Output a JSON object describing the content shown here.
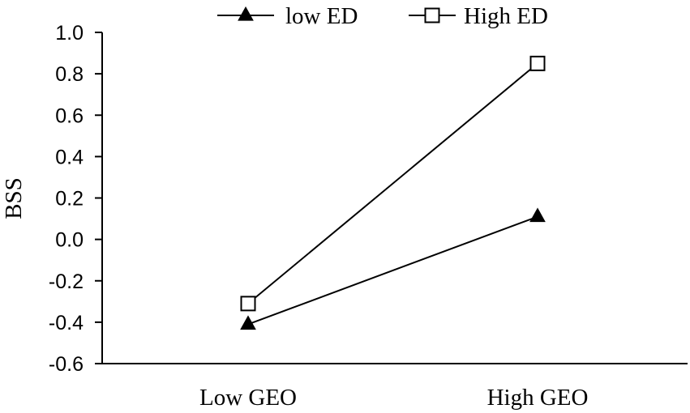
{
  "chart_data": {
    "type": "line",
    "categories": [
      "Low GEO",
      "High GEO"
    ],
    "series": [
      {
        "name": "low ED",
        "marker": "filled-triangle",
        "values": [
          -0.41,
          0.11
        ]
      },
      {
        "name": "High ED",
        "marker": "open-square",
        "values": [
          -0.31,
          0.85
        ]
      }
    ],
    "title": "",
    "xlabel": "",
    "ylabel": "BSS",
    "ylim": [
      -0.6,
      1.0
    ],
    "yticks": [
      "1.0",
      "0.8",
      "0.6",
      "0.4",
      "0.2",
      "0.0",
      "-0.2",
      "-0.4",
      "-0.6"
    ],
    "ytick_values": [
      1.0,
      0.8,
      0.6,
      0.4,
      0.2,
      0.0,
      -0.2,
      -0.4,
      -0.6
    ],
    "grid": false,
    "legend_position": "top-center",
    "colors": {
      "line": "#000000",
      "background": "#ffffff"
    }
  }
}
